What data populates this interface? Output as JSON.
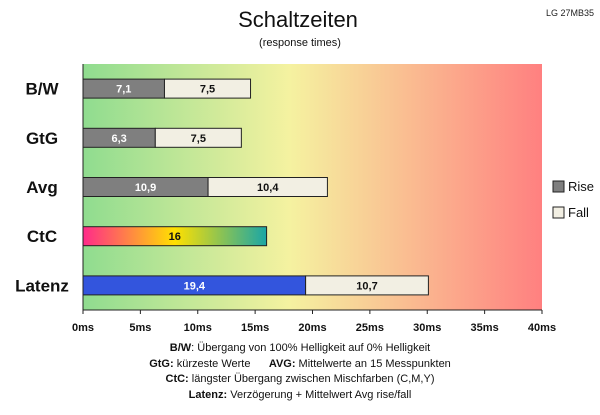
{
  "header": {
    "title": "Schaltzeiten",
    "subtitle": "(response times)",
    "model": "LG 27MB35"
  },
  "legend": {
    "rise": "Rise",
    "fall": "Fall"
  },
  "notes": [
    {
      "k1": "B/W",
      "t1": ": Übergang von 100% Helligkeit auf 0% Helligkeit",
      "k2": "",
      "t2": ""
    },
    {
      "k1": "GtG:",
      "t1": " kürzeste Werte",
      "k2": "AVG:",
      "t2": " Mittelwerte an 15 Messpunkten"
    },
    {
      "k1": "CtC:",
      "t1": " längster Übergang zwischen Mischfarben (C,M,Y)",
      "k2": "",
      "t2": ""
    },
    {
      "k1": "Latenz:",
      "t1": " Verzögerung + Mittelwert Avg rise/fall",
      "k2": "",
      "t2": ""
    }
  ],
  "colors": {
    "rise": "#7f7f7f",
    "fall": "#f2efe3",
    "latency": "#3355dd",
    "gradient": [
      "#8fdc8f",
      "#f5f2a0",
      "#ff8080"
    ],
    "ctc": [
      "#ff2a8a",
      "#ffe000",
      "#1aa6a6"
    ]
  },
  "chart_data": {
    "type": "bar",
    "orientation": "horizontal",
    "stacked": true,
    "categories": [
      "B/W",
      "GtG",
      "Avg",
      "CtC",
      "Latenz"
    ],
    "series": [
      {
        "name": "Rise",
        "values": [
          7.1,
          6.3,
          10.9,
          16,
          19.4
        ]
      },
      {
        "name": "Fall",
        "values": [
          7.5,
          7.5,
          10.4,
          null,
          10.7
        ]
      }
    ],
    "value_labels": [
      [
        "7,1",
        "7,5"
      ],
      [
        "6,3",
        "7,5"
      ],
      [
        "10,9",
        "10,4"
      ],
      [
        "16",
        null
      ],
      [
        "19,4",
        "10,7"
      ]
    ],
    "xticks": [
      "0ms",
      "5ms",
      "10ms",
      "15ms",
      "20ms",
      "25ms",
      "30ms",
      "35ms",
      "40ms"
    ],
    "xlim": [
      0,
      40
    ],
    "xstep": 5,
    "legend_position": "right",
    "grid": false
  }
}
